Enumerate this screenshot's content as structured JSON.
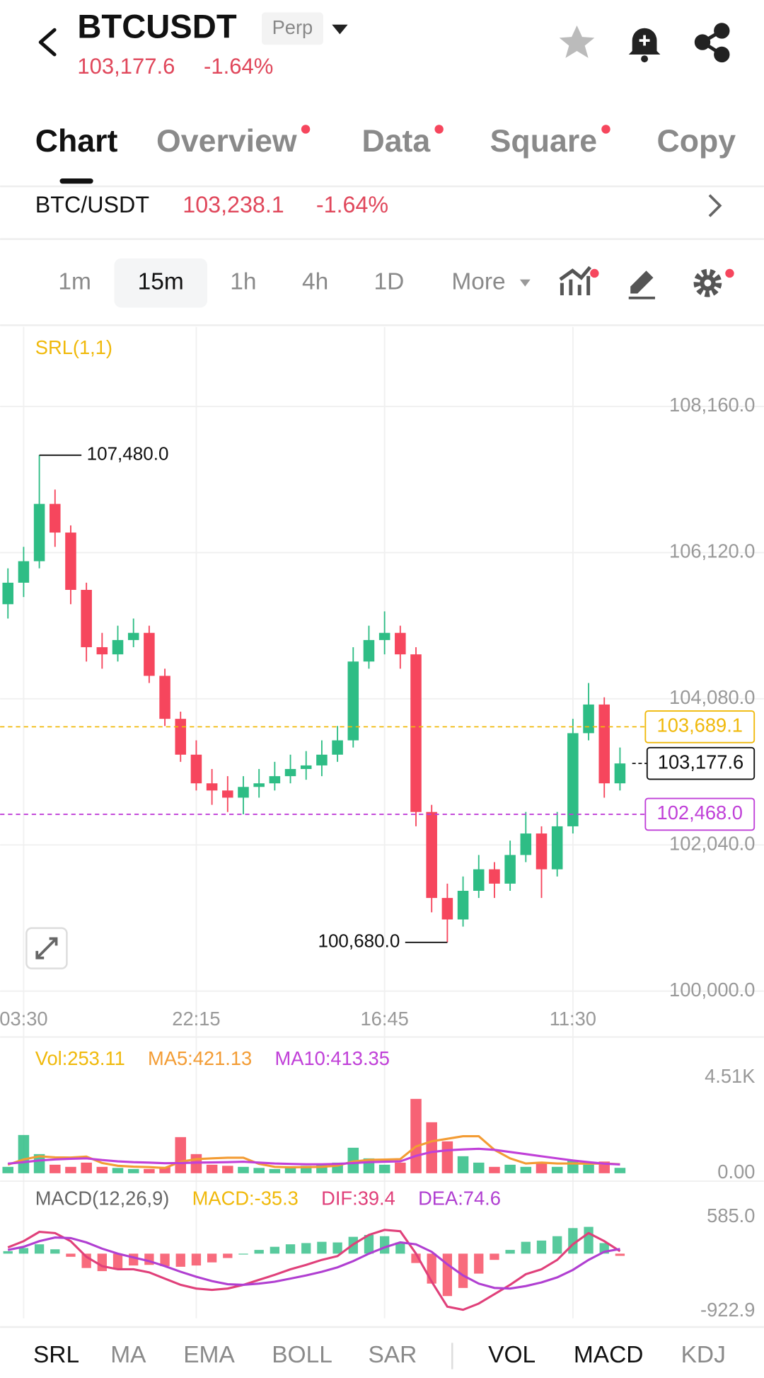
{
  "header": {
    "symbol": "BTCUSDT",
    "badge": "Perp",
    "price": "103,177.6",
    "change": "-1.64%"
  },
  "tabs": {
    "items": [
      "Chart",
      "Overview",
      "Data",
      "Square",
      "Copy"
    ],
    "active": 0,
    "badges": [
      1,
      2,
      3
    ]
  },
  "pair": {
    "name": "BTC/USDT",
    "price": "103,238.1",
    "change": "-1.64%"
  },
  "intervals": {
    "items": [
      "1m",
      "15m",
      "1h",
      "4h",
      "1D",
      "More"
    ],
    "active": 1
  },
  "bottom_tabs": {
    "items": [
      "SRL",
      "MA",
      "EMA",
      "BOLL",
      "SAR",
      "VOL",
      "MACD",
      "KDJ"
    ],
    "active": [
      0,
      5,
      6
    ]
  },
  "chart_data": [
    {
      "type": "candlestick",
      "legend": "SRL(1,1)",
      "legend_color": "#f0b90b",
      "categories": [
        null,
        "03:30",
        null,
        null,
        null,
        null,
        null,
        null,
        null,
        null,
        null,
        null,
        "22:15",
        null,
        null,
        null,
        null,
        null,
        null,
        null,
        null,
        null,
        null,
        null,
        "16:45",
        null,
        null,
        null,
        null,
        null,
        null,
        null,
        null,
        null,
        null,
        null,
        "11:30",
        null,
        null,
        null
      ],
      "open": [
        105400,
        105700,
        106000,
        106800,
        106400,
        105600,
        104800,
        104700,
        104900,
        105000,
        104400,
        103800,
        103300,
        102900,
        102800,
        102700,
        102850,
        102900,
        103000,
        103100,
        103150,
        103300,
        103500,
        104600,
        104900,
        105000,
        104700,
        102500,
        101300,
        101000,
        101400,
        101700,
        101500,
        101900,
        102200,
        101700,
        102300,
        103600,
        104000,
        102900
      ],
      "high": [
        105900,
        106200,
        107480,
        107000,
        106500,
        105700,
        105000,
        105100,
        105200,
        105100,
        104500,
        103900,
        103500,
        103100,
        103000,
        103000,
        103100,
        103200,
        103300,
        103350,
        103500,
        103700,
        104800,
        105100,
        105300,
        105100,
        104800,
        102600,
        101500,
        101600,
        101900,
        101800,
        102100,
        102500,
        102300,
        102500,
        103800,
        104300,
        104100,
        103400
      ],
      "low": [
        105200,
        105500,
        105900,
        106200,
        105400,
        104600,
        104500,
        104600,
        104800,
        104300,
        103700,
        103200,
        102800,
        102600,
        102500,
        102468,
        102700,
        102800,
        102900,
        102950,
        103000,
        103200,
        103400,
        104500,
        104700,
        104500,
        102300,
        101100,
        100680,
        100900,
        101300,
        101300,
        101400,
        101800,
        101300,
        101600,
        102200,
        103500,
        102700,
        102800
      ],
      "close": [
        105700,
        106000,
        106800,
        106400,
        105600,
        104800,
        104700,
        104900,
        105000,
        104400,
        103800,
        103300,
        102900,
        102800,
        102700,
        102850,
        102900,
        103000,
        103100,
        103150,
        103300,
        103500,
        104600,
        104900,
        105000,
        104700,
        102500,
        101300,
        101000,
        101400,
        101700,
        101500,
        101900,
        102200,
        101700,
        102300,
        103600,
        104000,
        102900,
        103177.6
      ],
      "up_color": "#2ebd85",
      "down_color": "#f6465d",
      "ylim": [
        99850,
        109270
      ],
      "yticks": [
        {
          "value": 108160,
          "label": "108,160.0"
        },
        {
          "value": 106120,
          "label": "106,120.0"
        },
        {
          "value": 104080,
          "label": "104,080.0"
        },
        {
          "value": 102040,
          "label": "102,040.0"
        },
        {
          "value": 100000,
          "label": "100,000.0"
        }
      ],
      "max_label": {
        "value": 107480,
        "label": "107,480.0"
      },
      "min_label": {
        "value": 100680,
        "label": "100,680.0"
      },
      "levels": [
        {
          "value": 103689.1,
          "label": "103,689.1",
          "color": "#f0b90b"
        },
        {
          "value": 102468,
          "label": "102,468.0",
          "color": "#c040d8"
        }
      ],
      "last_price": {
        "value": 103177.6,
        "label": "103,177.6"
      },
      "grid": true
    },
    {
      "type": "bar",
      "legend": "Vol:253.11",
      "legend_color": "#f0b90b",
      "values": [
        300,
        1800,
        900,
        400,
        300,
        500,
        300,
        250,
        200,
        200,
        300,
        1700,
        900,
        400,
        350,
        300,
        250,
        200,
        300,
        350,
        400,
        500,
        1200,
        700,
        400,
        500,
        3500,
        2400,
        1500,
        800,
        500,
        300,
        400,
        300,
        500,
        300,
        600,
        400,
        550,
        253.11
      ],
      "series": [
        {
          "name": "MA5:421.13",
          "color": "#f39c34",
          "values": [
            400,
            650,
            800,
            750,
            740,
            780,
            480,
            350,
            310,
            290,
            250,
            540,
            660,
            700,
            730,
            730,
            440,
            300,
            280,
            290,
            300,
            360,
            550,
            630,
            640,
            660,
            1260,
            1500,
            1620,
            1740,
            1740,
            1100,
            700,
            460,
            500,
            460,
            460,
            450,
            460,
            421.13
          ]
        },
        {
          "name": "MA10:413.35",
          "color": "#c040d8",
          "values": [
            450,
            520,
            600,
            650,
            680,
            700,
            620,
            560,
            520,
            500,
            470,
            480,
            500,
            510,
            520,
            540,
            500,
            460,
            440,
            420,
            420,
            440,
            480,
            520,
            540,
            560,
            820,
            1000,
            1080,
            1120,
            1150,
            1100,
            1000,
            900,
            800,
            700,
            600,
            520,
            450,
            413.35
          ]
        }
      ],
      "ylim": [
        0,
        4510
      ],
      "yticks": [
        {
          "value": 4510,
          "label": "4.51K"
        },
        {
          "value": 0,
          "label": "0.00"
        }
      ]
    },
    {
      "type": "macd",
      "legend": "MACD(12,26,9)",
      "legend_color": "#666666",
      "histogram_name": "MACD:-35.3",
      "histogram_color": "#f0b90b",
      "values": [
        40,
        90,
        150,
        70,
        -50,
        -230,
        -280,
        -250,
        -190,
        -180,
        -200,
        -210,
        -190,
        -140,
        -70,
        0,
        60,
        110,
        150,
        170,
        190,
        180,
        270,
        300,
        280,
        180,
        -150,
        -480,
        -680,
        -550,
        -320,
        -100,
        60,
        190,
        210,
        280,
        410,
        430,
        170,
        -35.3
      ],
      "up_color": "#2ebd85",
      "down_color": "#f6465d",
      "series": [
        {
          "name": "DIF:39.4",
          "color": "#e0407a",
          "values": [
            100,
            200,
            350,
            330,
            200,
            -50,
            -200,
            -250,
            -250,
            -300,
            -400,
            -500,
            -560,
            -580,
            -560,
            -500,
            -420,
            -340,
            -250,
            -180,
            -100,
            -40,
            150,
            300,
            380,
            360,
            0,
            -450,
            -850,
            -900,
            -800,
            -650,
            -500,
            -330,
            -250,
            -100,
            150,
            330,
            200,
            39.4
          ]
        },
        {
          "name": "DEA:74.6",
          "color": "#b03fd1",
          "values": [
            60,
            110,
            200,
            260,
            250,
            180,
            80,
            0,
            -60,
            -120,
            -200,
            -290,
            -370,
            -440,
            -490,
            -500,
            -480,
            -450,
            -400,
            -350,
            -290,
            -220,
            -120,
            0,
            100,
            180,
            150,
            30,
            -170,
            -350,
            -480,
            -550,
            -560,
            -520,
            -460,
            -380,
            -260,
            -100,
            30,
            74.6
          ]
        }
      ],
      "ylim": [
        -922.9,
        585
      ],
      "yticks": [
        {
          "value": 585,
          "label": "585.0"
        },
        -922.9
      ]
    }
  ]
}
